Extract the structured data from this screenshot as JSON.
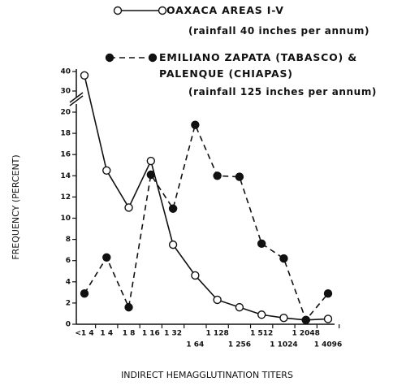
{
  "chart_data": {
    "type": "line",
    "x_label": "INDIRECT HEMAGGLUTINATION TITERS",
    "y_label": "FREQUENCY (PERCENT)",
    "categories": [
      "<1 4",
      "1 4",
      "1 8",
      "1 16",
      "1 32",
      "1 64",
      "1 128",
      "1 256",
      "1 512",
      "1 1024",
      "1 2048",
      "1 4096"
    ],
    "series": [
      {
        "name": "OAXACA AREAS I-V",
        "note": "(rainfall 40 inches per annum)",
        "color": "#111111",
        "line_style": "solid",
        "marker": "open",
        "values": [
          38,
          14.5,
          11,
          15.4,
          7.5,
          4.6,
          2.3,
          1.6,
          0.9,
          0.6,
          0.4,
          0.5
        ]
      },
      {
        "name": "EMILIANO ZAPATA (TABASCO) & PALENQUE (CHIAPAS)",
        "note": "(rainfall 125 inches per annum)",
        "color": "#111111",
        "line_style": "dashed",
        "marker": "filled",
        "values": [
          2.9,
          6.3,
          1.6,
          14.1,
          10.9,
          18.8,
          14,
          13.9,
          7.6,
          6.2,
          0.4,
          2.9
        ]
      }
    ],
    "ylim": [
      0,
      40
    ],
    "y_break": [
      20,
      30
    ],
    "yticks": [
      0,
      2,
      4,
      6,
      8,
      10,
      12,
      14,
      16,
      18,
      20,
      30,
      40
    ]
  }
}
